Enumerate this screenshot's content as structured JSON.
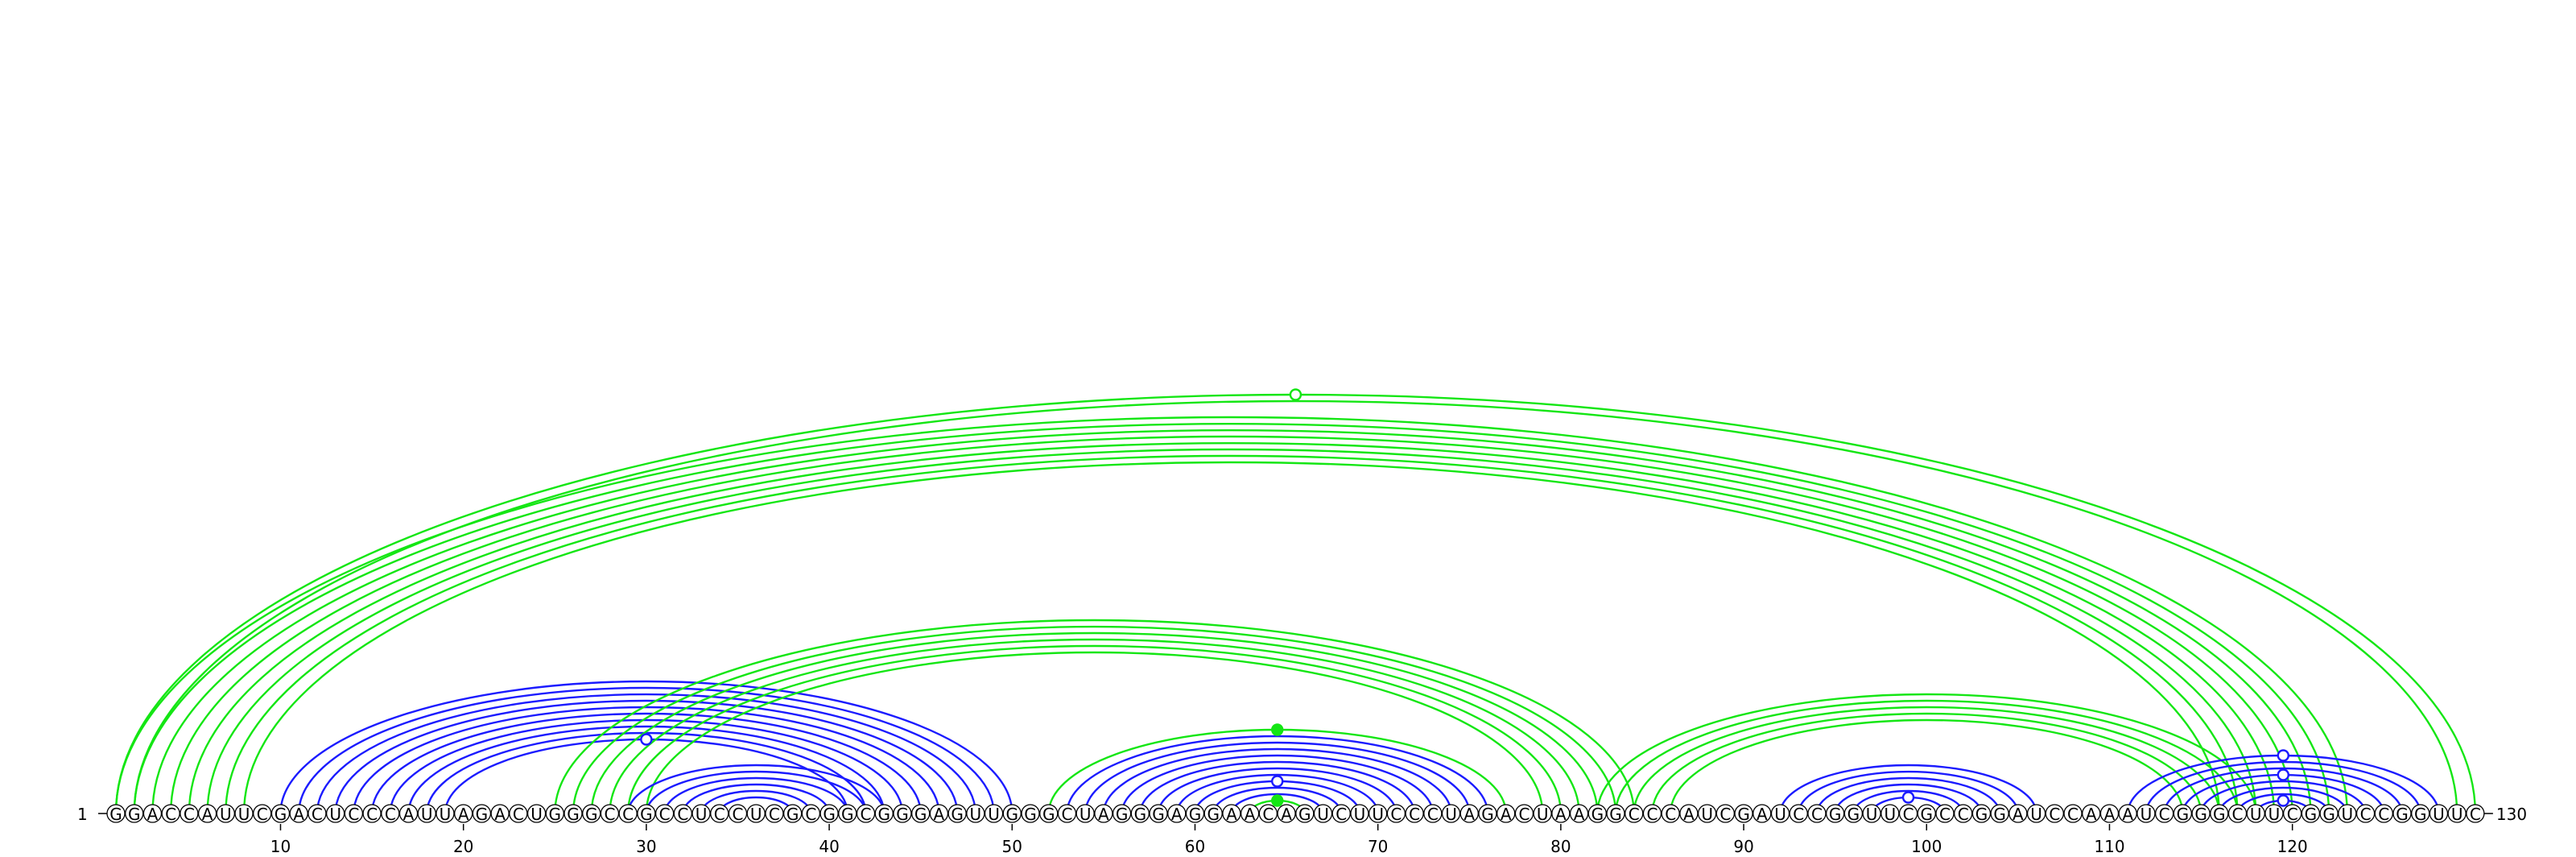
{
  "sequence": "GGACCAUUCGACUCCCAUUAGACUGGGCCGCCUCCUCGCGGCGGGAGUUGGGCUAGGGAGGAACAGUCUUCCCUAGACUAAGGCCCAUCGAUCCGGUUCGCCGGAUCCAAAUCGGGCUUCGGUCCGGUUC",
  "axis": {
    "start_label": "1",
    "end_label": "130",
    "ticks": [
      10,
      20,
      30,
      40,
      50,
      60,
      70,
      80,
      90,
      100,
      110,
      120
    ]
  },
  "colors": {
    "blue": "#1b1bff",
    "green": "#14e614"
  },
  "arc_groups": [
    {
      "color": "green",
      "pairs": [
        [
          1,
          123
        ],
        [
          2,
          122
        ],
        [
          3,
          121
        ],
        [
          4,
          120
        ],
        [
          5,
          119
        ],
        [
          6,
          118
        ],
        [
          7,
          117
        ],
        [
          8,
          116
        ]
      ]
    },
    {
      "color": "green",
      "pairs": [
        [
          1,
          130
        ],
        [
          2,
          129
        ]
      ]
    },
    {
      "color": "blue",
      "pairs": [
        [
          10,
          50
        ],
        [
          11,
          49
        ],
        [
          12,
          48
        ],
        [
          13,
          47
        ],
        [
          14,
          46
        ],
        [
          15,
          45
        ],
        [
          16,
          44
        ],
        [
          17,
          43
        ],
        [
          18,
          42
        ],
        [
          19,
          41
        ]
      ]
    },
    {
      "color": "green",
      "pairs": [
        [
          25,
          84
        ],
        [
          26,
          83
        ],
        [
          27,
          82
        ],
        [
          28,
          81
        ],
        [
          29,
          80
        ],
        [
          30,
          79
        ]
      ]
    },
    {
      "color": "blue",
      "pairs": [
        [
          29,
          43
        ],
        [
          30,
          42
        ],
        [
          31,
          41
        ],
        [
          32,
          40
        ],
        [
          33,
          39
        ],
        [
          34,
          38
        ]
      ]
    },
    {
      "color": "green",
      "pairs": [
        [
          52,
          77
        ]
      ]
    },
    {
      "color": "blue",
      "pairs": [
        [
          53,
          76
        ],
        [
          54,
          75
        ],
        [
          55,
          74
        ],
        [
          56,
          73
        ],
        [
          57,
          72
        ],
        [
          58,
          71
        ],
        [
          59,
          70
        ],
        [
          60,
          69
        ],
        [
          61,
          68
        ],
        [
          62,
          67
        ]
      ]
    },
    {
      "color": "green",
      "pairs": [
        [
          63,
          66
        ]
      ]
    },
    {
      "color": "green",
      "pairs": [
        [
          82,
          118
        ],
        [
          83,
          117
        ],
        [
          84,
          116
        ],
        [
          85,
          115
        ],
        [
          86,
          114
        ]
      ]
    },
    {
      "color": "blue",
      "pairs": [
        [
          92,
          106
        ],
        [
          93,
          105
        ],
        [
          94,
          104
        ],
        [
          95,
          103
        ],
        [
          96,
          102
        ],
        [
          97,
          101
        ]
      ]
    },
    {
      "color": "blue",
      "pairs": [
        [
          111,
          128
        ],
        [
          112,
          127
        ],
        [
          113,
          126
        ],
        [
          114,
          125
        ],
        [
          115,
          124
        ],
        [
          116,
          123
        ],
        [
          117,
          122
        ],
        [
          118,
          121
        ]
      ]
    }
  ],
  "markers": [
    {
      "i": 1,
      "j": 130,
      "color": "green",
      "filled": false
    },
    {
      "i": 19,
      "j": 41,
      "color": "blue",
      "filled": false
    },
    {
      "i": 52,
      "j": 77,
      "color": "green",
      "filled": true
    },
    {
      "i": 60,
      "j": 69,
      "color": "blue",
      "filled": false
    },
    {
      "i": 63,
      "j": 66,
      "color": "green",
      "filled": true
    },
    {
      "i": 97,
      "j": 101,
      "color": "blue",
      "filled": false
    },
    {
      "i": 111,
      "j": 128,
      "color": "blue",
      "filled": false
    },
    {
      "i": 114,
      "j": 125,
      "color": "blue",
      "filled": false
    },
    {
      "i": 118,
      "j": 121,
      "color": "blue",
      "filled": false
    }
  ]
}
